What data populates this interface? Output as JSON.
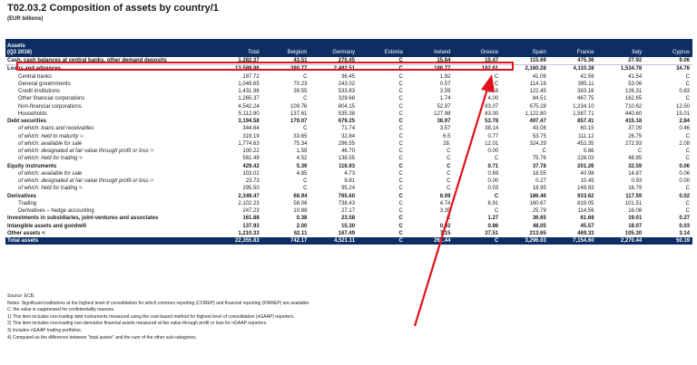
{
  "title": "T02.03.2 Composition of assets by country/1",
  "subtitle": "(EUR billions)",
  "header": {
    "label_line1": "Assets",
    "label_line2": "(Q3 2016)",
    "columns": [
      "Total",
      "Belgium",
      "Germany",
      "Estonia",
      "Ireland",
      "Greece",
      "Spain",
      "France",
      "Italy",
      "Cyprus"
    ]
  },
  "rows": [
    {
      "label": "Cash, cash balances at central banks, other demand deposits",
      "sup": "",
      "style": "bold",
      "values": [
        "1,282.37",
        "43.51",
        "270.45",
        "C",
        "15.84",
        "10.47",
        "115.69",
        "475.36",
        "27.92",
        "9.06"
      ]
    },
    {
      "label": "Loans and advances",
      "sup": "",
      "style": "bold",
      "values": [
        "13,589.86",
        "380.77",
        "2,482.51",
        "C",
        "188.77",
        "182.61",
        "2,160.28",
        "4,110.38",
        "1,534.78",
        "34.76"
      ]
    },
    {
      "label": "Central banks",
      "sup": "",
      "style": "ind1",
      "values": [
        "187.72",
        "C",
        "36.45",
        "C",
        "1.92",
        "C",
        "41.06",
        "42.56",
        "41.54",
        "C"
      ]
    },
    {
      "label": "General governments",
      "sup": "",
      "style": "ind1",
      "values": [
        "1,049.65",
        "70.23",
        "243.02",
        "C",
        "0.57",
        "C",
        "114.18",
        "395.11",
        "53.06",
        "C"
      ]
    },
    {
      "label": "Credit institutions",
      "sup": "",
      "style": "ind1",
      "values": [
        "1,431.96",
        "39.55",
        "533.83",
        "C",
        "3.59",
        "5.18",
        "122.45",
        "383.16",
        "126.31",
        "0.83"
      ]
    },
    {
      "label": "Other financial corporations",
      "sup": "",
      "style": "ind1",
      "values": [
        "1,265.37",
        "C",
        "329.68",
        "C",
        "1.74",
        "4.00",
        "84.51",
        "467.75",
        "162.65",
        "C"
      ]
    },
    {
      "label": "Non-financial corporations",
      "sup": "",
      "style": "ind1",
      "values": [
        "4,542.24",
        "109.76",
        "804.15",
        "C",
        "52.97",
        "83.07",
        "675.28",
        "1,234.10",
        "710.62",
        "12.50"
      ]
    },
    {
      "label": "Households",
      "sup": "",
      "style": "ind1",
      "values": [
        "5,112.90",
        "137.61",
        "535.38",
        "C",
        "127.98",
        "83.00",
        "1,122.80",
        "1,587.71",
        "440.60",
        "15.01"
      ]
    },
    {
      "label": "Debt securities",
      "sup": "",
      "style": "bold",
      "values": [
        "3,194.58",
        "179.07",
        "679.25",
        "C",
        "38.97",
        "53.78",
        "497.47",
        "857.41",
        "415.18",
        "2.84"
      ]
    },
    {
      "label": "of which: loans and receivables",
      "sup": "",
      "style": "ind2",
      "values": [
        "344.64",
        "C",
        "71.74",
        "C",
        "3.57",
        "38.14",
        "43.08",
        "60.15",
        "37.09",
        "0.46"
      ]
    },
    {
      "label": "of which: held to maturity",
      "sup": "1)",
      "style": "ind2",
      "values": [
        "319.19",
        "33.65",
        "32.84",
        "C",
        "6.5",
        "0.77",
        "53.75",
        "111.12",
        "26.75",
        "C"
      ]
    },
    {
      "label": "of which: available for sale",
      "sup": "",
      "style": "ind2",
      "values": [
        "1,774.63",
        "75.34",
        "296.55",
        "C",
        "28.",
        "12.01",
        "324.29",
        "452.35",
        "272.93",
        "2.08"
      ]
    },
    {
      "label": "of which: designated at fair value through profit or loss",
      "sup": "2)",
      "style": "ind2",
      "values": [
        "100.22",
        "1.59",
        "46.70",
        "C",
        "C",
        "0.00",
        "C",
        "5.66",
        "C",
        "C"
      ]
    },
    {
      "label": "of which: held for trading",
      "sup": "3)",
      "style": "ind2",
      "values": [
        "561.49",
        "4.52",
        "138.55",
        "C",
        "C",
        "C",
        "75.76",
        "228.03",
        "48.85",
        "C"
      ]
    },
    {
      "label": "Equity instruments",
      "sup": "",
      "style": "bold",
      "values": [
        "429.42",
        "5.39",
        "116.93",
        "C",
        "C",
        "0.71",
        "37.78",
        "201.26",
        "32.59",
        "0.06"
      ]
    },
    {
      "label": "of which: available for sale",
      "sup": "",
      "style": "ind2",
      "values": [
        "103.02",
        "4.85",
        "4.73",
        "C",
        "C",
        "0.69",
        "18.55",
        "40.98",
        "14.87",
        "0.06"
      ]
    },
    {
      "label": "of which: designated at fair value through profit or loss",
      "sup": "2)",
      "style": "ind2",
      "values": [
        "23.73",
        "C",
        "9.81",
        "C",
        "C",
        "0.00",
        "0.27",
        "10.45",
        "0.93",
        "0.00"
      ]
    },
    {
      "label": "of which: held for trading",
      "sup": "3)",
      "style": "ind2",
      "values": [
        "295.50",
        "C",
        "95.24",
        "C",
        "C",
        "0.03",
        "18.95",
        "149.83",
        "16.79",
        "C"
      ]
    },
    {
      "label": "Derivatives",
      "sup": "",
      "style": "bold",
      "values": [
        "2,349.47",
        "68.94",
        "765.60",
        "C",
        "8.09",
        "C",
        "186.46",
        "933.62",
        "117.59",
        "0.02"
      ]
    },
    {
      "label": "Trading",
      "sup": "",
      "style": "ind1",
      "values": [
        "2,102.23",
        "58.06",
        "738.43",
        "C",
        "4.74",
        "6.91",
        "160.67",
        "819.05",
        "101.51",
        "C"
      ]
    },
    {
      "label": "Derivatives – hedge accounting",
      "sup": "",
      "style": "ind1",
      "values": [
        "247.23",
        "10.88",
        "27.17",
        "C",
        "3.35",
        "C",
        "25.79",
        "114.56",
        "16.08",
        "C"
      ]
    },
    {
      "label": "Investments in subsidiaries, joint-ventures and associates",
      "sup": "",
      "style": "bold",
      "values": [
        "161.88",
        "0.38",
        "23.58",
        "C",
        "C",
        "1.27",
        "36.65",
        "61.68",
        "19.01",
        "0.27"
      ]
    },
    {
      "label": "Intangible assets and goodwill",
      "sup": "",
      "style": "bold",
      "values": [
        "137.93",
        "2.00",
        "15.30",
        "C",
        "0.92",
        "0.86",
        "48.05",
        "45.57",
        "18.07",
        "0.03"
      ]
    },
    {
      "label": "Other assets",
      "sup": "4)",
      "style": "bold",
      "values": [
        "1,210.33",
        "62.11",
        "167.49",
        "C",
        "7.15",
        "37.51",
        "213.65",
        "469.33",
        "105.30",
        "3.14"
      ]
    },
    {
      "label": "Total assets",
      "sup": "",
      "style": "total",
      "values": [
        "22,355.83",
        "742.17",
        "4,521.11",
        "C",
        "261.44",
        "C",
        "3,296.03",
        "7,154.60",
        "2,270.44",
        "50.19"
      ]
    }
  ],
  "notes": [
    "Source: ECB.",
    "Notes: Significant institutions at the highest level of consolidation for which common reporting (COREP) and financial reporting (FINREP) are available.",
    "C: the value is suppressed for confidentiality reasons.",
    "1) This item includes non-trading debt instruments measured using the cost-based method for highest level of consolidation (nGAAP) reporters.",
    "2) This item includes non-trading non-derivative financial assets measured at fair value through profit or loss for nGAAP reporters.",
    "3) Includes nGAAP trading portfolios.",
    "4) Computed as the difference between \"total assets\" and the sum of the other sub-categories."
  ],
  "colors": {
    "header_bg": "#0d2e64",
    "highlight": "#e0121b"
  }
}
